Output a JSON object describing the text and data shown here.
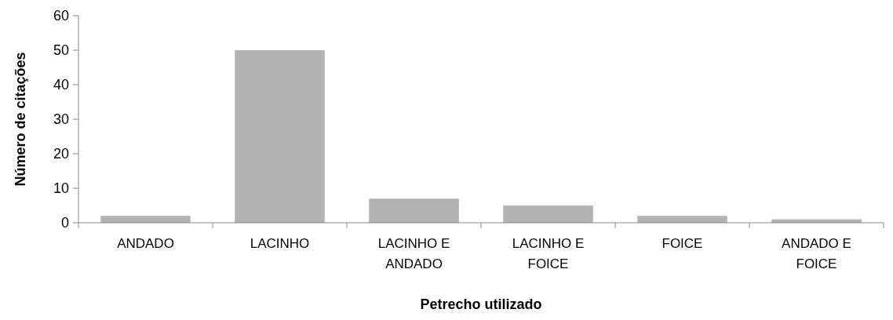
{
  "chart_data": {
    "type": "bar",
    "xlabel": "Petrecho utilizado",
    "ylabel": "Número de citações",
    "categories": [
      "ANDADO",
      "LACINHO",
      "LACINHO E ANDADO",
      "LACINHO E FOICE",
      "FOICE",
      "ANDADO E FOICE"
    ],
    "values": [
      2,
      50,
      7,
      5,
      2,
      1
    ],
    "color": "#b3b3b3",
    "ylim": [
      0,
      60
    ],
    "yticks": [
      0,
      10,
      20,
      30,
      40,
      50,
      60
    ],
    "grid": false
  }
}
